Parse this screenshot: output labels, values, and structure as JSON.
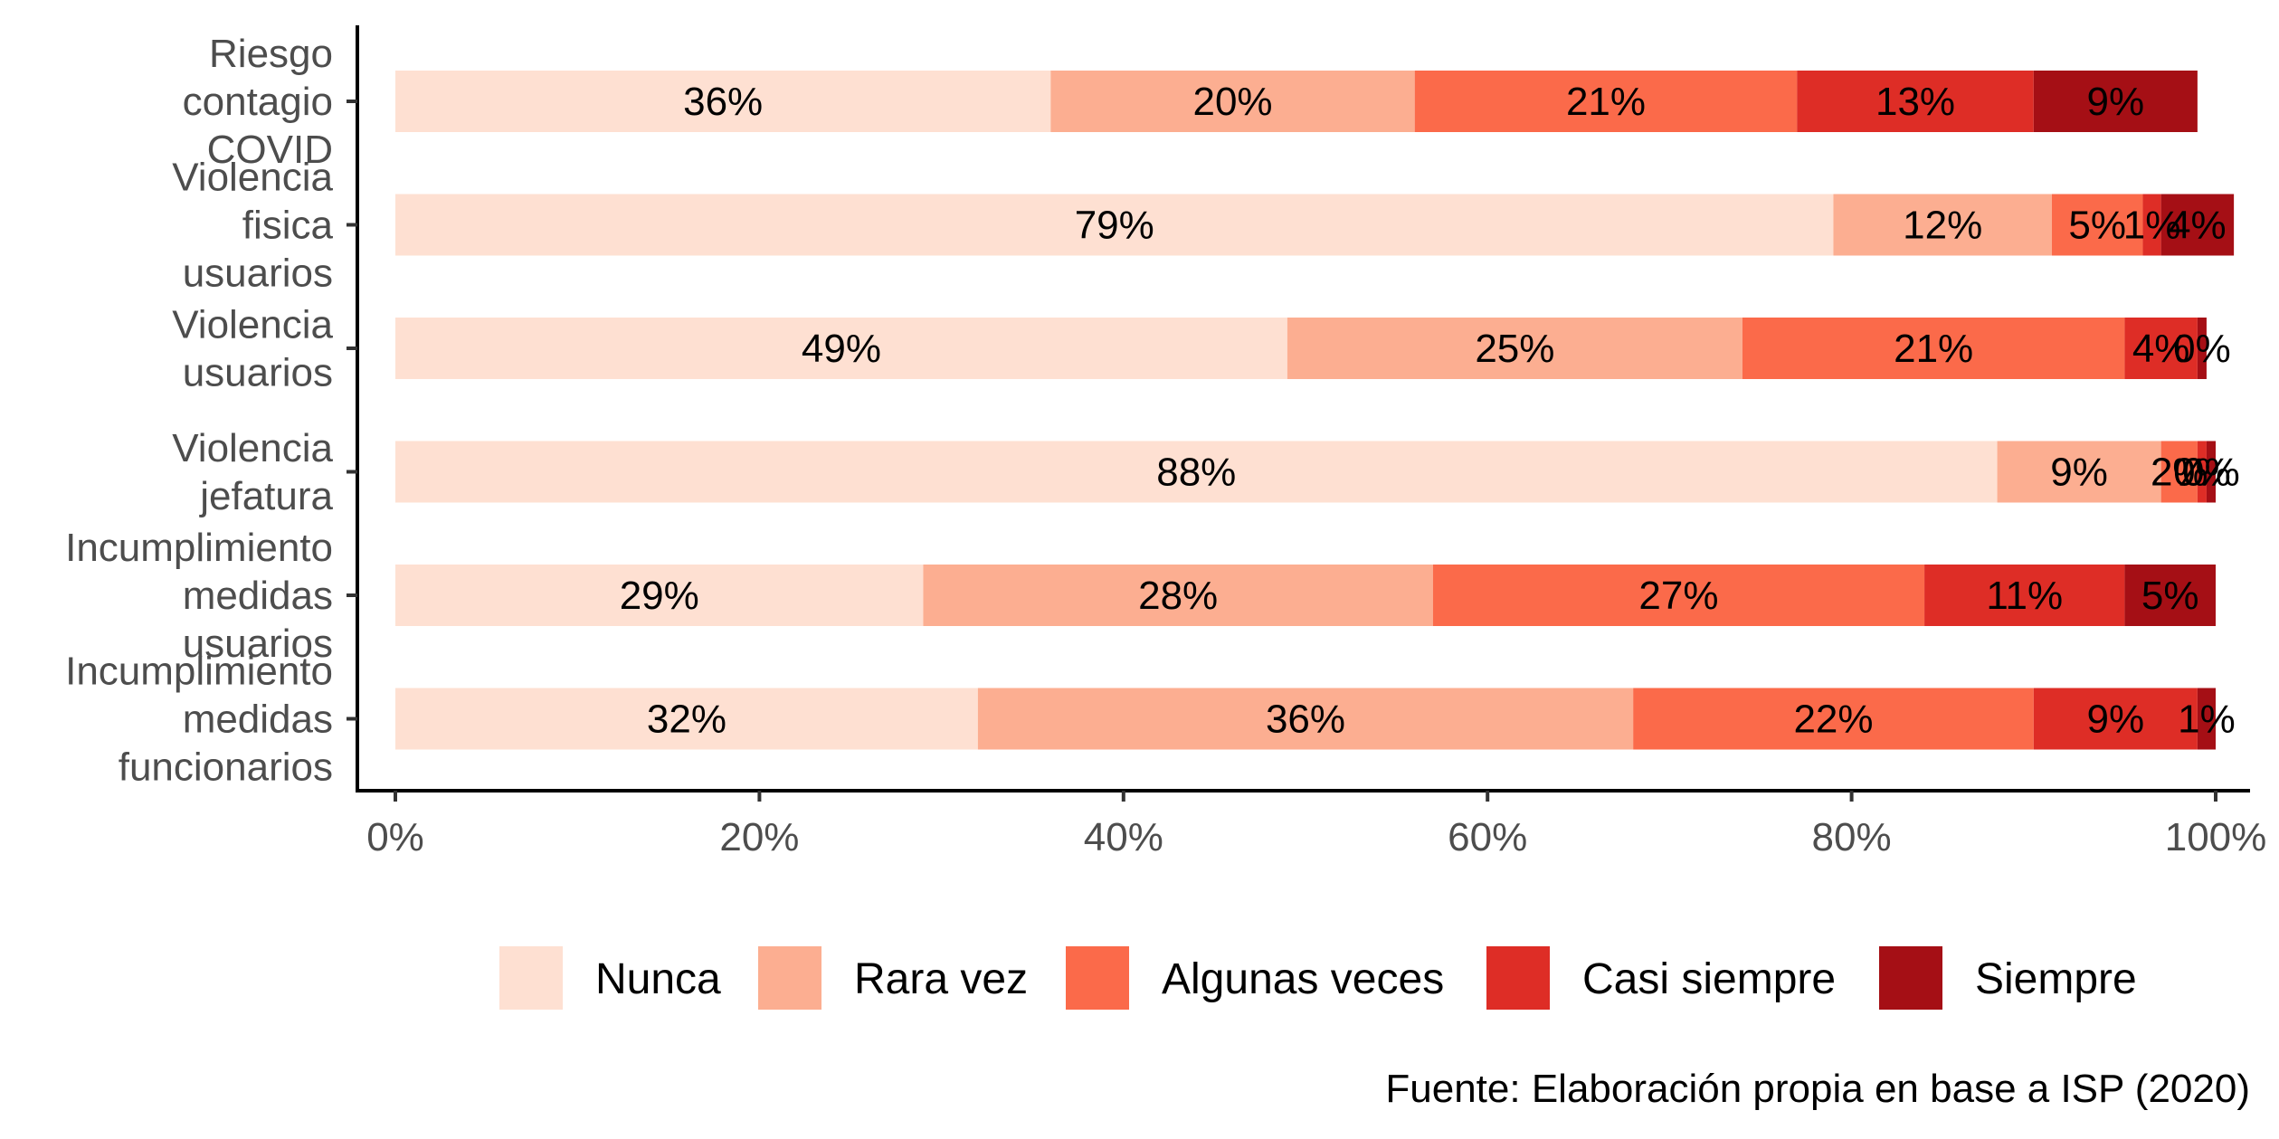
{
  "chart_data": {
    "type": "bar",
    "orientation": "horizontal",
    "stacked": true,
    "categories": [
      "Riesgo contagio COVID",
      "Violencia fisica usuarios",
      "Violencia usuarios",
      "Violencia jefatura",
      "Incumplimiento medidas usuarios",
      "Incumplimiento medidas funcionarios"
    ],
    "category_lines": [
      [
        "Riesgo",
        "contagio",
        "COVID"
      ],
      [
        "Violencia",
        "fisica",
        "usuarios"
      ],
      [
        "Violencia",
        "usuarios"
      ],
      [
        "Violencia",
        "jefatura"
      ],
      [
        "Incumplimiento",
        "medidas",
        "usuarios"
      ],
      [
        "Incumplimiento",
        "medidas",
        "funcionarios"
      ]
    ],
    "series": [
      {
        "name": "Nunca",
        "color": "#FEE0D2",
        "values": [
          36,
          79,
          49,
          88,
          29,
          32
        ],
        "labels": [
          "36%",
          "79%",
          "49%",
          "88%",
          "29%",
          "32%"
        ]
      },
      {
        "name": "Rara vez",
        "color": "#FCAE91",
        "values": [
          20,
          12,
          25,
          9,
          28,
          36
        ],
        "labels": [
          "20%",
          "12%",
          "25%",
          "9%",
          "28%",
          "36%"
        ]
      },
      {
        "name": "Algunas veces",
        "color": "#FB6A4A",
        "values": [
          21,
          5,
          21,
          2,
          27,
          22
        ],
        "labels": [
          "21%",
          "5%",
          "21%",
          "2%",
          "27%",
          "22%"
        ]
      },
      {
        "name": "Casi siempre",
        "color": "#DE2D26",
        "values": [
          13,
          1,
          4,
          0.5,
          11,
          9
        ],
        "labels": [
          "13%",
          "1%",
          "4%",
          "0%",
          "11%",
          "9%"
        ]
      },
      {
        "name": "Siempre",
        "color": "#A50F15",
        "values": [
          9,
          4,
          0.5,
          0.5,
          5,
          1
        ],
        "labels": [
          "9%",
          "4%",
          "0%",
          "0%",
          "5%",
          "1%"
        ]
      }
    ],
    "x_ticks": [
      "0%",
      "20%",
      "40%",
      "60%",
      "80%",
      "100%"
    ],
    "xlim": [
      0,
      100
    ],
    "legend_position": "bottom",
    "grid": false,
    "caption": "Fuente: Elaboración propia en base a ISP (2020)"
  }
}
